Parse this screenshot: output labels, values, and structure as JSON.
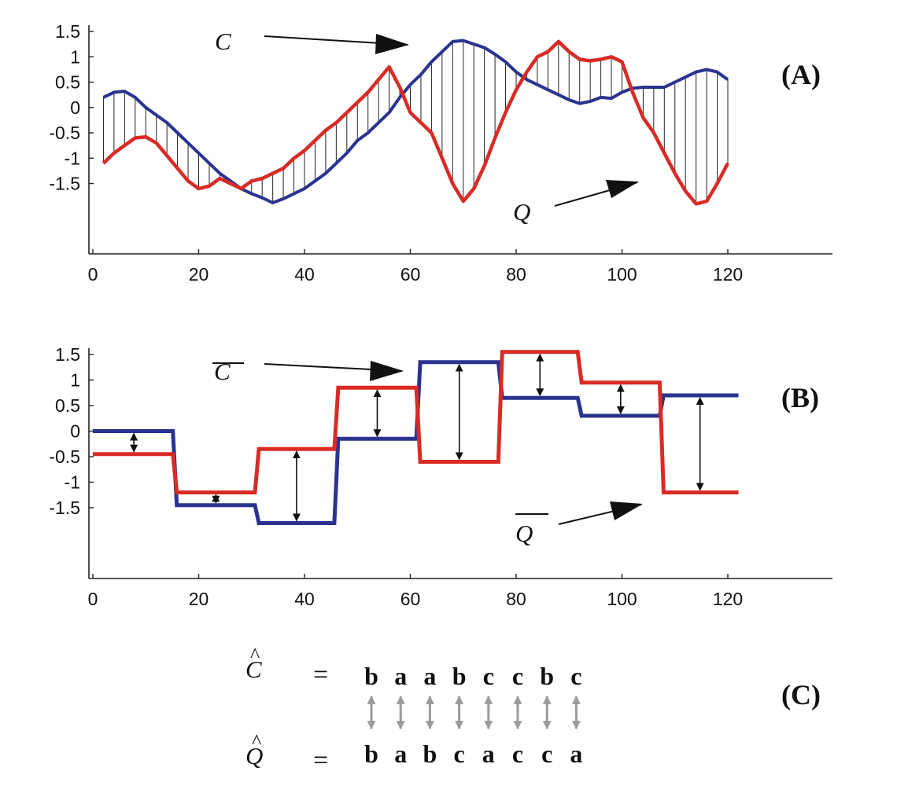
{
  "colors": {
    "C": "#2b3390",
    "Q": "#d92b25",
    "axis": "#222222",
    "hatch": "#222222",
    "link": "#9b9b9b"
  },
  "chart_data": [
    {
      "panel": "(A)",
      "type": "line",
      "xlim": [
        0,
        140
      ],
      "ylim": [
        -1.95,
        1.5
      ],
      "xticks": [
        "0",
        "20",
        "40",
        "60",
        "80",
        "100",
        "120"
      ],
      "yticks": [
        "1.5",
        "1",
        "0.5",
        "0",
        "-0.5",
        "-1",
        "-1.5"
      ],
      "vertical_lines_between_series": true,
      "series": [
        {
          "name": "C",
          "color": "#2b3390",
          "x": [
            2,
            4,
            6,
            8,
            10,
            12,
            14,
            16,
            18,
            20,
            22,
            24,
            26,
            28,
            30,
            32,
            34,
            36,
            38,
            40,
            42,
            44,
            46,
            48,
            50,
            52,
            54,
            56,
            58,
            60,
            62,
            64,
            66,
            68,
            70,
            72,
            74,
            76,
            78,
            80,
            82,
            84,
            86,
            88,
            90,
            92,
            94,
            96,
            98,
            100,
            102,
            104,
            106,
            108,
            110,
            112,
            114,
            116,
            118,
            120
          ],
          "y": [
            0.2,
            0.3,
            0.32,
            0.2,
            0.0,
            -0.15,
            -0.3,
            -0.5,
            -0.7,
            -0.9,
            -1.1,
            -1.3,
            -1.45,
            -1.6,
            -1.7,
            -1.78,
            -1.88,
            -1.8,
            -1.7,
            -1.6,
            -1.45,
            -1.3,
            -1.1,
            -0.9,
            -0.65,
            -0.5,
            -0.3,
            -0.1,
            0.2,
            0.45,
            0.65,
            0.9,
            1.1,
            1.3,
            1.32,
            1.25,
            1.18,
            1.05,
            0.9,
            0.7,
            0.55,
            0.45,
            0.35,
            0.25,
            0.15,
            0.08,
            0.12,
            0.2,
            0.18,
            0.3,
            0.38,
            0.4,
            0.4,
            0.4,
            0.5,
            0.6,
            0.7,
            0.75,
            0.7,
            0.55
          ]
        },
        {
          "name": "Q",
          "color": "#d92b25",
          "x": [
            2,
            4,
            6,
            8,
            10,
            12,
            14,
            16,
            18,
            20,
            22,
            24,
            26,
            28,
            30,
            32,
            34,
            36,
            38,
            40,
            42,
            44,
            46,
            48,
            50,
            52,
            54,
            56,
            58,
            60,
            62,
            64,
            66,
            68,
            70,
            72,
            74,
            76,
            78,
            80,
            82,
            84,
            86,
            88,
            90,
            92,
            94,
            96,
            98,
            100,
            102,
            104,
            106,
            108,
            110,
            112,
            114,
            116,
            118,
            120
          ],
          "y": [
            -1.1,
            -0.9,
            -0.75,
            -0.6,
            -0.58,
            -0.7,
            -0.95,
            -1.2,
            -1.45,
            -1.6,
            -1.55,
            -1.4,
            -1.5,
            -1.6,
            -1.45,
            -1.4,
            -1.3,
            -1.2,
            -1.0,
            -0.85,
            -0.65,
            -0.45,
            -0.3,
            -0.1,
            0.1,
            0.3,
            0.55,
            0.8,
            0.4,
            -0.1,
            -0.3,
            -0.5,
            -1.0,
            -1.5,
            -1.85,
            -1.6,
            -1.15,
            -0.6,
            -0.1,
            0.35,
            0.7,
            1.0,
            1.1,
            1.3,
            1.1,
            0.95,
            0.92,
            0.95,
            1.0,
            0.9,
            0.3,
            -0.2,
            -0.5,
            -0.9,
            -1.3,
            -1.65,
            -1.9,
            -1.85,
            -1.5,
            -1.1
          ]
        }
      ]
    },
    {
      "panel": "(B)",
      "type": "line",
      "xlim": [
        0,
        140
      ],
      "ylim": [
        -1.95,
        1.5
      ],
      "xticks": [
        "0",
        "20",
        "40",
        "60",
        "80",
        "100",
        "120"
      ],
      "yticks": [
        "1.5",
        "1",
        "0.5",
        "0",
        "-0.5",
        "-1",
        "-1.5"
      ],
      "segment_edges": [
        0,
        15.5,
        31,
        46,
        61.5,
        77,
        92,
        107.5,
        122
      ],
      "double_arrows_between_series": true,
      "series": [
        {
          "name": "C̄",
          "color": "#2b3390",
          "values": [
            0.0,
            -1.45,
            -1.8,
            -0.15,
            1.35,
            0.65,
            0.3,
            0.7
          ]
        },
        {
          "name": "Q̄",
          "color": "#d92b25",
          "values": [
            -0.45,
            -1.2,
            -0.35,
            0.85,
            -0.6,
            1.55,
            0.95,
            -1.2
          ]
        }
      ]
    }
  ],
  "panel_c": {
    "label": "(C)",
    "c_symbol": "Ĉ",
    "q_symbol": "Q̂",
    "equals": "=",
    "c_word": [
      "b",
      "a",
      "a",
      "b",
      "c",
      "c",
      "b",
      "c"
    ],
    "q_word": [
      "b",
      "a",
      "b",
      "c",
      "a",
      "c",
      "c",
      "a"
    ]
  }
}
